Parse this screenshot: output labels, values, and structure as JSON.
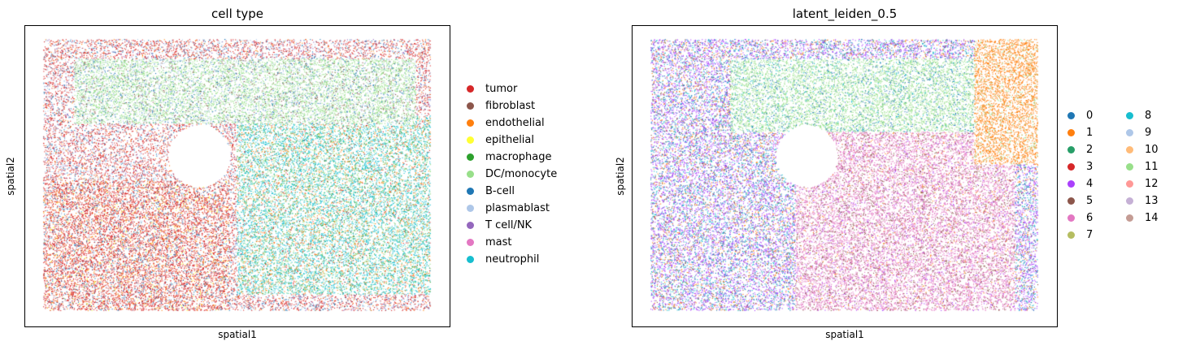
{
  "chart_data": [
    {
      "type": "scatter",
      "title": "cell type",
      "xlabel": "spatial1",
      "ylabel": "spatial2",
      "ticks": "hidden",
      "legend_position": "right",
      "legend_columns": 1,
      "series": [
        {
          "name": "tumor",
          "color": "#d62728"
        },
        {
          "name": "fibroblast",
          "color": "#8c564b"
        },
        {
          "name": "endothelial",
          "color": "#ff7f0e"
        },
        {
          "name": "epithelial",
          "color": "#ffff33"
        },
        {
          "name": "macrophage",
          "color": "#2ca02c"
        },
        {
          "name": "DC/monocyte",
          "color": "#98df8a"
        },
        {
          "name": "B-cell",
          "color": "#1f77b4"
        },
        {
          "name": "plasmablast",
          "color": "#aec7e8"
        },
        {
          "name": "T cell/NK",
          "color": "#9467bd"
        },
        {
          "name": "mast",
          "color": "#e377c2"
        },
        {
          "name": "neutrophil",
          "color": "#17becf"
        }
      ]
    },
    {
      "type": "scatter",
      "title": "latent_leiden_0.5",
      "xlabel": "spatial1",
      "ylabel": "spatial2",
      "ticks": "hidden",
      "legend_position": "right",
      "legend_columns": 2,
      "series": [
        {
          "name": "0",
          "color": "#1f77b4"
        },
        {
          "name": "1",
          "color": "#ff7f0e"
        },
        {
          "name": "2",
          "color": "#279e68"
        },
        {
          "name": "3",
          "color": "#d62728"
        },
        {
          "name": "4",
          "color": "#aa40fc"
        },
        {
          "name": "5",
          "color": "#8c564b"
        },
        {
          "name": "6",
          "color": "#e377c2"
        },
        {
          "name": "7",
          "color": "#b5bd61"
        },
        {
          "name": "8",
          "color": "#17becf"
        },
        {
          "name": "9",
          "color": "#aec7e8"
        },
        {
          "name": "10",
          "color": "#ffbb78"
        },
        {
          "name": "11",
          "color": "#98df8a"
        },
        {
          "name": "12",
          "color": "#ff9896"
        },
        {
          "name": "13",
          "color": "#c5b0d5"
        },
        {
          "name": "14",
          "color": "#c49c94"
        }
      ]
    }
  ]
}
